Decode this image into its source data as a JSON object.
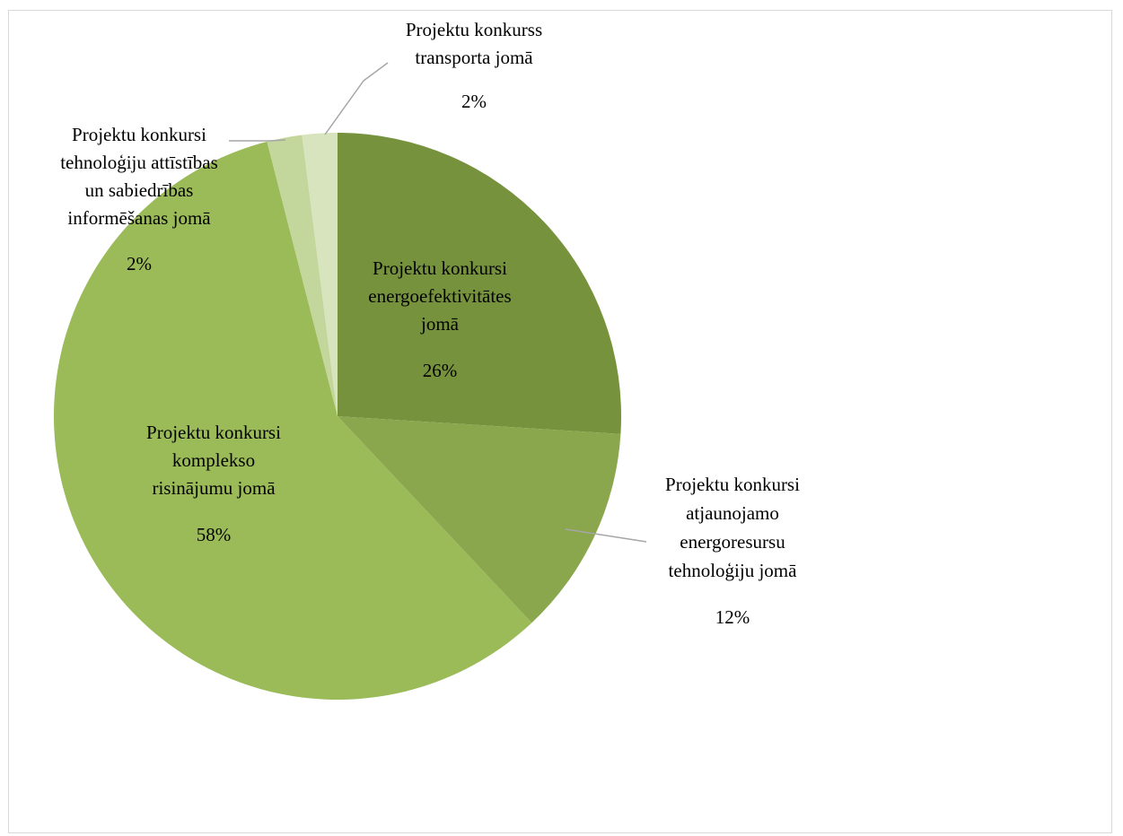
{
  "chart_data": {
    "type": "pie",
    "start_angle_deg": 0,
    "direction": "clockwise",
    "slices": [
      {
        "label_lines": [
          "Projektu konkursi",
          "energoefektivitātes",
          "jomā"
        ],
        "percent_label": "26%",
        "value": 26,
        "color": "#76923c"
      },
      {
        "label_lines": [
          "Projektu konkursi",
          "atjaunojamo",
          "energoresursu",
          "tehnoloģiju jomā"
        ],
        "percent_label": "12%",
        "value": 12,
        "color": "#8aa74d"
      },
      {
        "label_lines": [
          "Projektu konkursi",
          "komplekso",
          "risinājumu jomā"
        ],
        "percent_label": "58%",
        "value": 58,
        "color": "#9bbb59"
      },
      {
        "label_lines": [
          "Projektu konkursi",
          "tehnoloģiju attīstības",
          "un sabiedrības",
          "informēšanas jomā"
        ],
        "percent_label": "2%",
        "value": 2,
        "color": "#c3d69b"
      },
      {
        "label_lines": [
          "Projektu konkurss",
          "transporta jomā"
        ],
        "percent_label": "2%",
        "value": 2,
        "color": "#d7e4bd"
      }
    ],
    "legend": "none",
    "data_labels": "category and percentage"
  }
}
